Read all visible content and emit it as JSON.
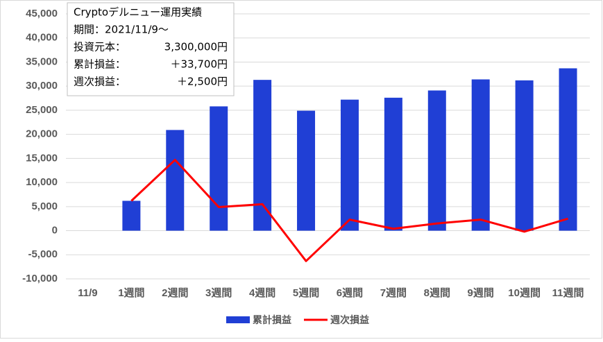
{
  "chart_data": {
    "type": "bar-line",
    "categories": [
      "11/9",
      "1週間",
      "2週間",
      "3週間",
      "4週間",
      "5週間",
      "6週間",
      "7週間",
      "8週間",
      "9週間",
      "10週間",
      "11週間"
    ],
    "series": [
      {
        "name": "累計損益",
        "type": "bar",
        "color": "#203fd5",
        "values": [
          null,
          6200,
          20900,
          25800,
          31300,
          24900,
          27200,
          27600,
          29100,
          31400,
          31200,
          33700
        ]
      },
      {
        "name": "週次損益",
        "type": "line",
        "color": "#ff0000",
        "values": [
          null,
          6200,
          14700,
          4900,
          5500,
          -6300,
          2300,
          400,
          1500,
          2300,
          -200,
          2500
        ]
      }
    ],
    "ylim": [
      -10000,
      45000
    ],
    "yticks": [
      {
        "value": -10000,
        "label": "-10,000"
      },
      {
        "value": -5000,
        "label": "-5,000"
      },
      0,
      {
        "value": 5000,
        "label": "5,000"
      },
      {
        "value": 10000,
        "label": "10,000"
      },
      {
        "value": 15000,
        "label": "15,000"
      },
      {
        "value": 20000,
        "label": "20,000"
      },
      {
        "value": 25000,
        "label": "25,000"
      },
      {
        "value": 30000,
        "label": "30,000"
      },
      {
        "value": 35000,
        "label": "35,000"
      },
      {
        "value": 40000,
        "label": "40,000"
      },
      {
        "value": 45000,
        "label": "45,000"
      }
    ],
    "grid": true,
    "legend": "bottom",
    "annotations": [
      [
        "Cryptoデルニュー運用実績"
      ],
      [
        "期間：2021/11/9～"
      ],
      [
        "投資元本：",
        "3,300,000円"
      ],
      [
        "累計損益：",
        "＋33,700円"
      ],
      [
        "週次損益：",
        "＋2,500円"
      ]
    ]
  }
}
